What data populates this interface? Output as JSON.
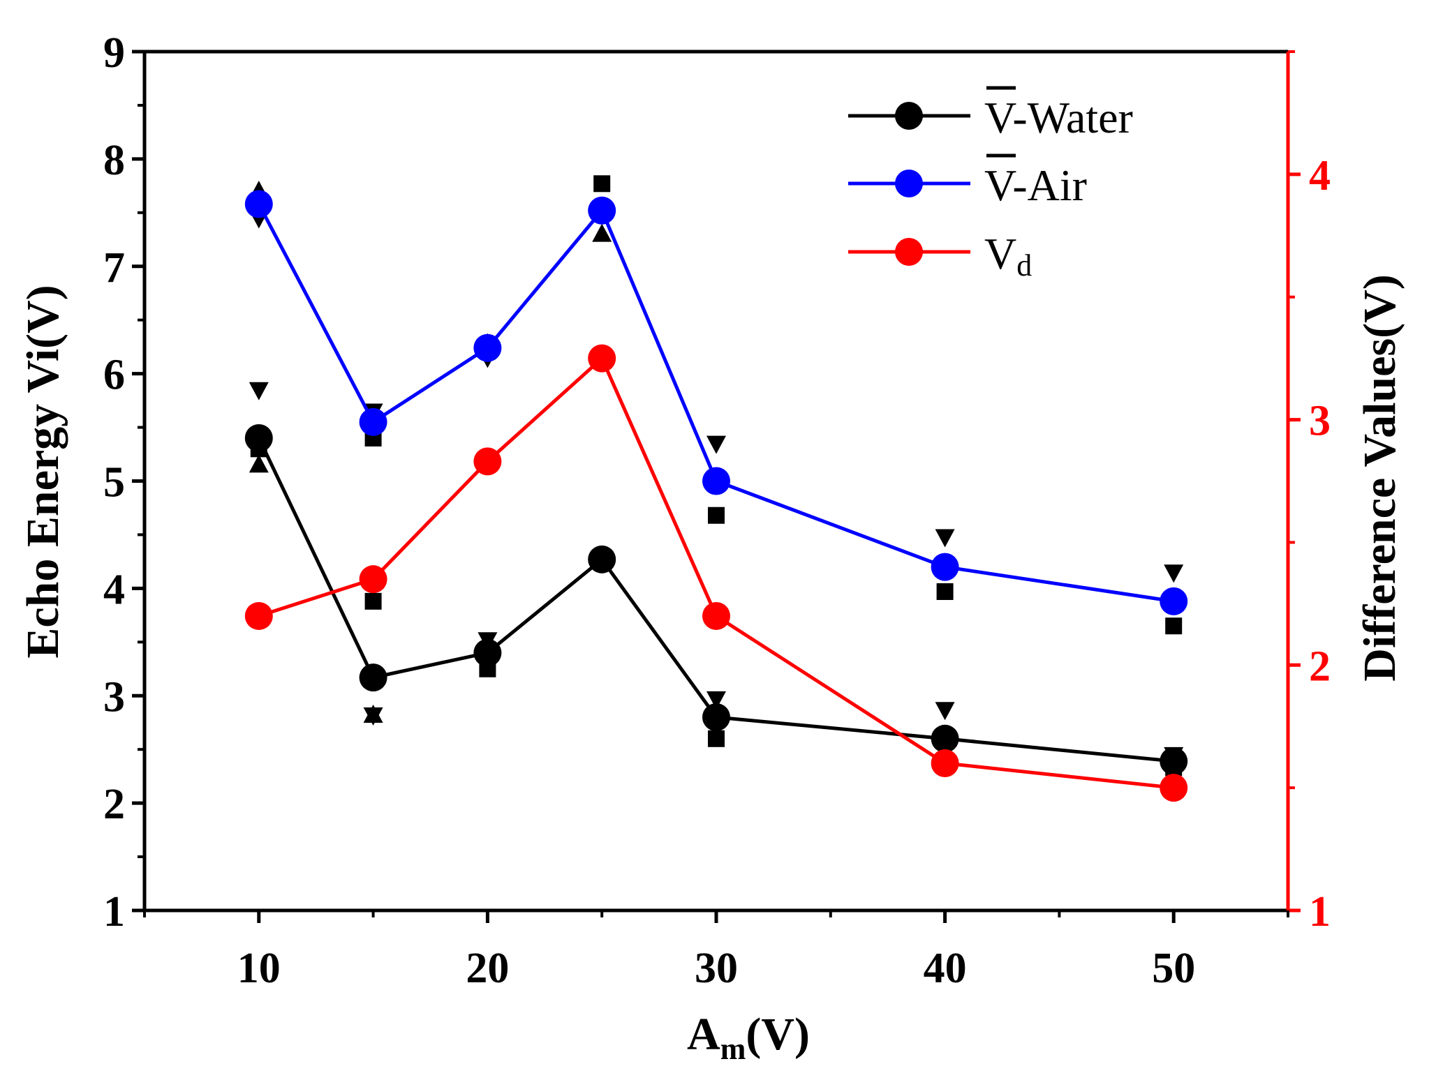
{
  "chart_data": {
    "type": "line",
    "x_categories": [
      10,
      15,
      20,
      25,
      30,
      40,
      50
    ],
    "xlabel": {
      "main": "A",
      "sub": "m",
      "rest": "(V)"
    },
    "ylabel": "Echo Energy Vi(V)",
    "ylabel_right": "Difference Values(V)",
    "ylim": [
      1,
      9
    ],
    "ylim_right": [
      1,
      4.5
    ],
    "x_ticks": [
      "10",
      "20",
      "30",
      "40",
      "50"
    ],
    "x_tick_values": [
      10,
      20,
      30,
      40,
      50
    ],
    "y_ticks": [
      "1",
      "2",
      "3",
      "4",
      "5",
      "6",
      "7",
      "8",
      "9"
    ],
    "y_tick_values": [
      1,
      2,
      3,
      4,
      5,
      6,
      7,
      8,
      9
    ],
    "y_right_ticks": [
      "1",
      "2",
      "3",
      "4"
    ],
    "y_right_tick_values": [
      1,
      2,
      3,
      4
    ],
    "colors": {
      "water": "#000000",
      "air": "#0000ff",
      "diff": "#ff0000",
      "axis": "#000000",
      "right_axis": "#ff0000"
    },
    "series": [
      {
        "key": "water",
        "name": "V-Water",
        "legend_main": "V",
        "legend_rest": "-Water",
        "overbar": true,
        "color": "#000000",
        "axis": "left",
        "values": [
          5.4,
          3.17,
          3.4,
          4.27,
          2.8,
          2.6,
          2.39
        ]
      },
      {
        "key": "air",
        "name": "V-Air",
        "legend_main": "V",
        "legend_rest": "-Air",
        "overbar": true,
        "color": "#0000ff",
        "axis": "left",
        "values": [
          7.58,
          5.55,
          6.24,
          7.52,
          5.0,
          4.2,
          3.88
        ]
      },
      {
        "key": "diff",
        "name": "Vd",
        "legend_main": "V",
        "legend_rest": "d",
        "overbar": false,
        "subscript": true,
        "color": "#ff0000",
        "axis": "right",
        "values": [
          2.2,
          2.35,
          2.83,
          3.25,
          2.2,
          1.6,
          1.5
        ]
      }
    ],
    "raw_markers": {
      "square": [
        {
          "x": 10,
          "y": 5.3
        },
        {
          "x": 15,
          "y": 5.4
        },
        {
          "x": 15,
          "y": 3.88
        },
        {
          "x": 20,
          "y": 3.25
        },
        {
          "x": 25,
          "y": 7.77
        },
        {
          "x": 30,
          "y": 4.68
        },
        {
          "x": 30,
          "y": 2.6
        },
        {
          "x": 40,
          "y": 3.97
        },
        {
          "x": 40,
          "y": 2.35
        },
        {
          "x": 50,
          "y": 3.65
        },
        {
          "x": 50,
          "y": 2.33
        }
      ],
      "triangle_up": [
        {
          "x": 10,
          "y": 7.7
        },
        {
          "x": 10,
          "y": 5.15
        },
        {
          "x": 15,
          "y": 2.82
        },
        {
          "x": 20,
          "y": 6.28
        },
        {
          "x": 20,
          "y": 3.48
        },
        {
          "x": 25,
          "y": 7.3
        },
        {
          "x": 25,
          "y": 4.3
        },
        {
          "x": 30,
          "y": 2.78
        }
      ],
      "triangle_down": [
        {
          "x": 10,
          "y": 7.45
        },
        {
          "x": 10,
          "y": 5.85
        },
        {
          "x": 15,
          "y": 5.65
        },
        {
          "x": 15,
          "y": 2.82
        },
        {
          "x": 20,
          "y": 6.15
        },
        {
          "x": 20,
          "y": 3.52
        },
        {
          "x": 25,
          "y": 4.25
        },
        {
          "x": 30,
          "y": 5.35
        },
        {
          "x": 30,
          "y": 2.97
        },
        {
          "x": 40,
          "y": 4.48
        },
        {
          "x": 40,
          "y": 2.87
        },
        {
          "x": 50,
          "y": 4.15
        },
        {
          "x": 50,
          "y": 2.45
        }
      ]
    }
  }
}
